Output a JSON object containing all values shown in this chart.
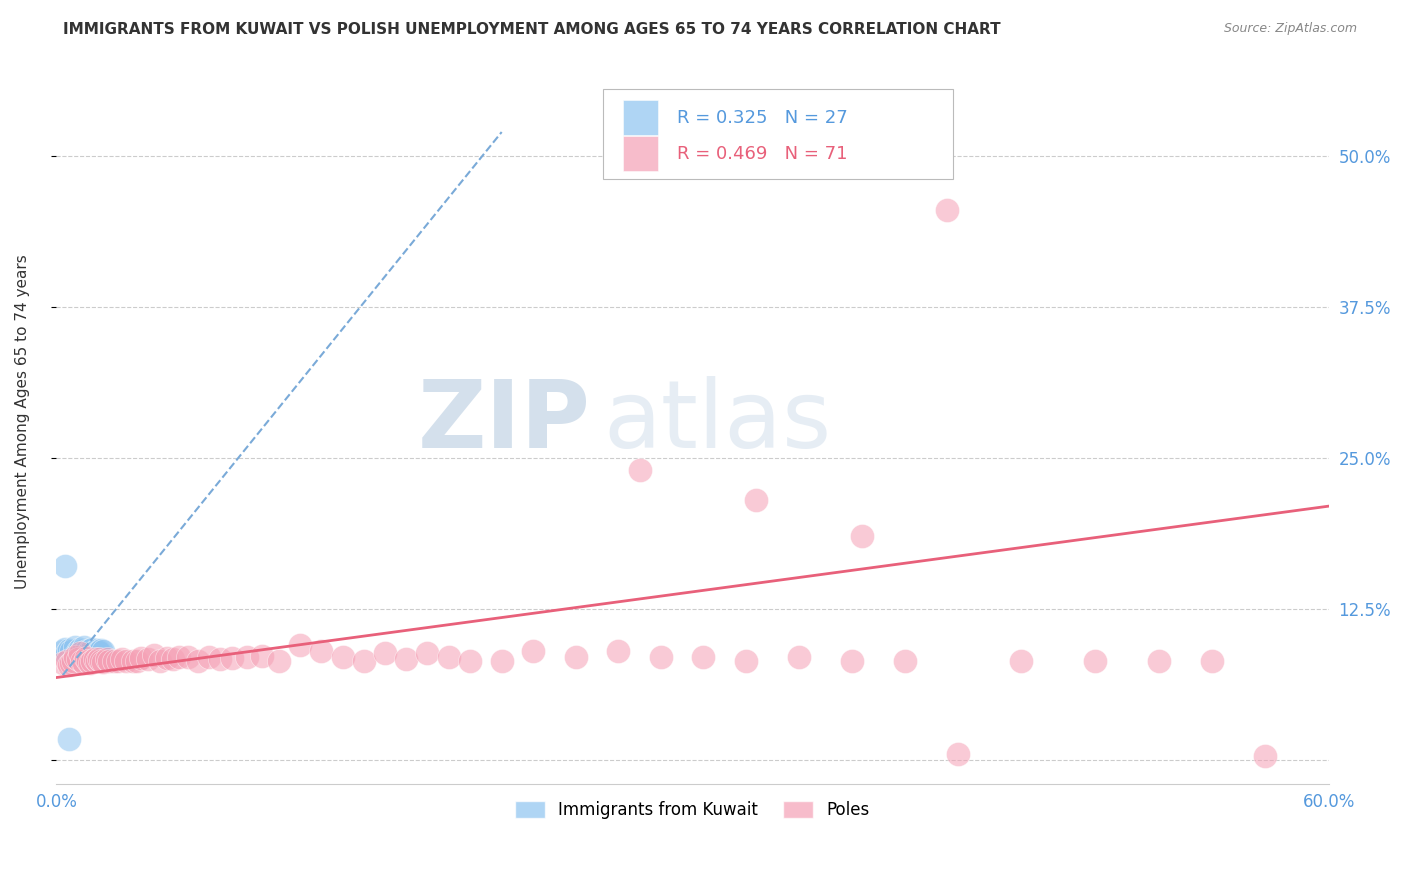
{
  "title": "IMMIGRANTS FROM KUWAIT VS POLISH UNEMPLOYMENT AMONG AGES 65 TO 74 YEARS CORRELATION CHART",
  "source": "Source: ZipAtlas.com",
  "ylabel": "Unemployment Among Ages 65 to 74 years",
  "xlim": [
    0.0,
    0.6
  ],
  "ylim": [
    -0.02,
    0.58
  ],
  "yticks": [
    0.0,
    0.125,
    0.25,
    0.375,
    0.5
  ],
  "ytick_labels": [
    "",
    "12.5%",
    "25.0%",
    "37.5%",
    "50.0%"
  ],
  "xticks": [
    0.0,
    0.1,
    0.2,
    0.3,
    0.4,
    0.5,
    0.6
  ],
  "xtick_labels": [
    "0.0%",
    "",
    "",
    "",
    "",
    "",
    "60.0%"
  ],
  "legend_label1": "Immigrants from Kuwait",
  "legend_label2": "Poles",
  "color_blue": "#8EC4F0",
  "color_pink": "#F5A0B5",
  "color_blue_line": "#7AAAD8",
  "color_pink_line": "#E8607A",
  "watermark_zip": "ZIP",
  "watermark_atlas": "atlas",
  "blue_scatter_x": [
    0.003,
    0.004,
    0.005,
    0.006,
    0.007,
    0.008,
    0.009,
    0.01,
    0.01,
    0.011,
    0.012,
    0.012,
    0.013,
    0.013,
    0.014,
    0.015,
    0.015,
    0.016,
    0.017,
    0.018,
    0.019,
    0.02,
    0.02,
    0.021,
    0.022,
    0.004,
    0.006
  ],
  "blue_scatter_y": [
    0.09,
    0.092,
    0.088,
    0.091,
    0.09,
    0.085,
    0.093,
    0.09,
    0.088,
    0.092,
    0.09,
    0.091,
    0.089,
    0.093,
    0.09,
    0.088,
    0.087,
    0.091,
    0.092,
    0.09,
    0.091,
    0.09,
    0.089,
    0.091,
    0.09,
    0.16,
    0.017
  ],
  "pink_scatter_x": [
    0.003,
    0.005,
    0.006,
    0.007,
    0.008,
    0.009,
    0.01,
    0.011,
    0.012,
    0.013,
    0.014,
    0.015,
    0.016,
    0.017,
    0.018,
    0.019,
    0.02,
    0.021,
    0.022,
    0.024,
    0.025,
    0.027,
    0.029,
    0.031,
    0.033,
    0.036,
    0.038,
    0.04,
    0.043,
    0.046,
    0.049,
    0.052,
    0.055,
    0.058,
    0.062,
    0.067,
    0.072,
    0.077,
    0.083,
    0.09,
    0.097,
    0.105,
    0.115,
    0.125,
    0.135,
    0.145,
    0.155,
    0.165,
    0.175,
    0.185,
    0.195,
    0.21,
    0.225,
    0.245,
    0.265,
    0.285,
    0.305,
    0.325,
    0.35,
    0.375,
    0.4,
    0.425,
    0.455,
    0.49,
    0.52,
    0.545,
    0.57,
    0.275,
    0.33,
    0.38,
    0.42
  ],
  "pink_scatter_y": [
    0.08,
    0.082,
    0.078,
    0.08,
    0.082,
    0.085,
    0.083,
    0.088,
    0.082,
    0.08,
    0.084,
    0.082,
    0.08,
    0.082,
    0.083,
    0.082,
    0.083,
    0.082,
    0.081,
    0.083,
    0.082,
    0.082,
    0.082,
    0.083,
    0.082,
    0.082,
    0.082,
    0.084,
    0.083,
    0.087,
    0.082,
    0.084,
    0.083,
    0.085,
    0.085,
    0.082,
    0.085,
    0.083,
    0.084,
    0.085,
    0.086,
    0.082,
    0.095,
    0.09,
    0.085,
    0.082,
    0.088,
    0.083,
    0.088,
    0.085,
    0.082,
    0.082,
    0.09,
    0.085,
    0.09,
    0.085,
    0.085,
    0.082,
    0.085,
    0.082,
    0.082,
    0.005,
    0.082,
    0.082,
    0.082,
    0.082,
    0.003,
    0.24,
    0.215,
    0.185,
    0.455
  ],
  "blue_line_x": [
    0.003,
    0.21
  ],
  "blue_line_y": [
    0.07,
    0.52
  ],
  "pink_line_x": [
    0.0,
    0.6
  ],
  "pink_line_y": [
    0.068,
    0.21
  ]
}
